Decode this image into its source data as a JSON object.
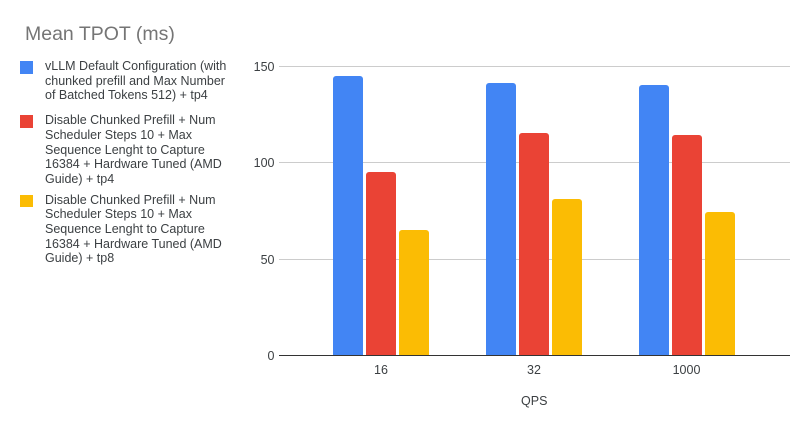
{
  "title": "Mean TPOT (ms)",
  "chart_data": {
    "type": "bar",
    "title": "Mean TPOT (ms)",
    "categories": [
      "16",
      "32",
      "1000"
    ],
    "series": [
      {
        "name": "vLLM Default Configuration (with chunked prefill and Max Number of Batched Tokens 512) + tp4",
        "color": "#4285F4",
        "values": [
          145,
          141,
          140
        ]
      },
      {
        "name": "Disable Chunked Prefill + Num Scheduler Steps 10 + Max Sequence Lenght to Capture 16384 + Hardware Tuned (AMD Guide) + tp4",
        "color": "#EA4335",
        "values": [
          95,
          115,
          114
        ]
      },
      {
        "name": "Disable Chunked Prefill + Num Scheduler Steps 10 + Max Sequence Lenght to Capture 16384 + Hardware Tuned (AMD Guide) + tp8",
        "color": "#FBBC04",
        "values": [
          65,
          81,
          74
        ]
      }
    ],
    "xlabel": "QPS",
    "ylabel": "",
    "ylim": [
      0,
      150
    ],
    "yticks": [
      0,
      50,
      100,
      150
    ],
    "legend_position": "left",
    "grid": true
  }
}
